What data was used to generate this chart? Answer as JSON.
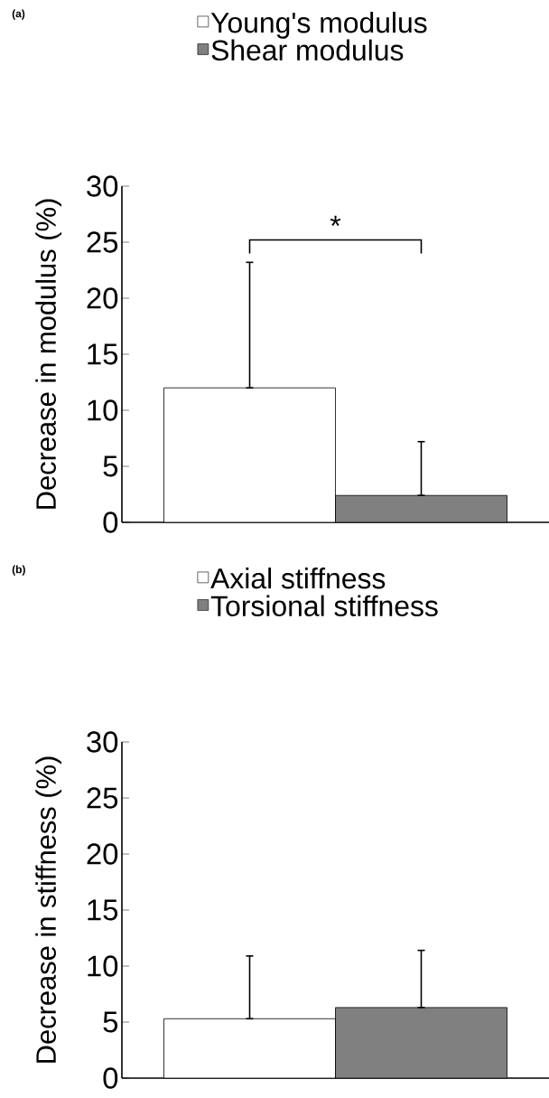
{
  "chart_data": [
    {
      "type": "bar",
      "title": "(a)",
      "ylabel": "Decrease in modulus (%)",
      "categories": [
        null
      ],
      "series": [
        {
          "name": "Young's modulus",
          "color": "#ffffff",
          "values": [
            12
          ],
          "errors": [
            [
              12,
              23.2
            ]
          ]
        },
        {
          "name": "Shear modulus",
          "color": "#808080",
          "values": [
            2.4
          ],
          "errors": [
            [
              2.4,
              7.2
            ]
          ]
        }
      ],
      "ylim": [
        0,
        30
      ],
      "yticks": [
        0,
        5,
        10,
        15,
        20,
        25,
        30
      ],
      "legend": "top",
      "annotations": [
        "*"
      ]
    },
    {
      "type": "bar",
      "title": "(b)",
      "ylabel": "Decrease in stiffness (%)",
      "categories": [
        null
      ],
      "series": [
        {
          "name": "Axial stiffness",
          "color": "#ffffff",
          "values": [
            5.3
          ],
          "errors": [
            [
              5.3,
              10.9
            ]
          ]
        },
        {
          "name": "Torsional stiffness",
          "color": "#808080",
          "values": [
            6.3
          ],
          "errors": [
            [
              6.3,
              11.4
            ]
          ]
        }
      ],
      "ylim": [
        0,
        30
      ],
      "yticks": [
        0,
        5,
        10,
        15,
        20,
        25,
        30
      ],
      "legend": "top"
    }
  ]
}
